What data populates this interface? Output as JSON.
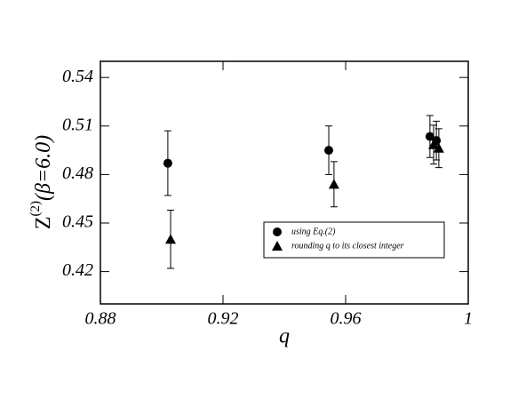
{
  "chart_data": {
    "type": "scatter",
    "xlabel": "q",
    "ylabel": [
      "Z",
      "(2)",
      "(β=6.0)"
    ],
    "xlim": [
      0.88,
      1.0
    ],
    "ylim": [
      0.4,
      0.55
    ],
    "xticks": [
      0.88,
      0.92,
      0.96,
      1
    ],
    "yticks": [
      0.42,
      0.45,
      0.48,
      0.51,
      0.54
    ],
    "series": [
      {
        "name": "using Eq.(2)",
        "marker": "circle",
        "color": "#000000",
        "x": [
          0.902,
          0.9545,
          0.9875,
          0.9896
        ],
        "values": [
          0.487,
          0.495,
          0.5035,
          0.501
        ],
        "errors": [
          0.02,
          0.015,
          0.013,
          0.012
        ]
      },
      {
        "name": "rounding q to its closest integer",
        "marker": "triangle",
        "color": "#000000",
        "x": [
          0.9029,
          0.9562,
          0.9887,
          0.9904
        ],
        "values": [
          0.44,
          0.474,
          0.4985,
          0.4963
        ],
        "errors": [
          0.018,
          0.014,
          0.012,
          0.012
        ]
      }
    ]
  }
}
